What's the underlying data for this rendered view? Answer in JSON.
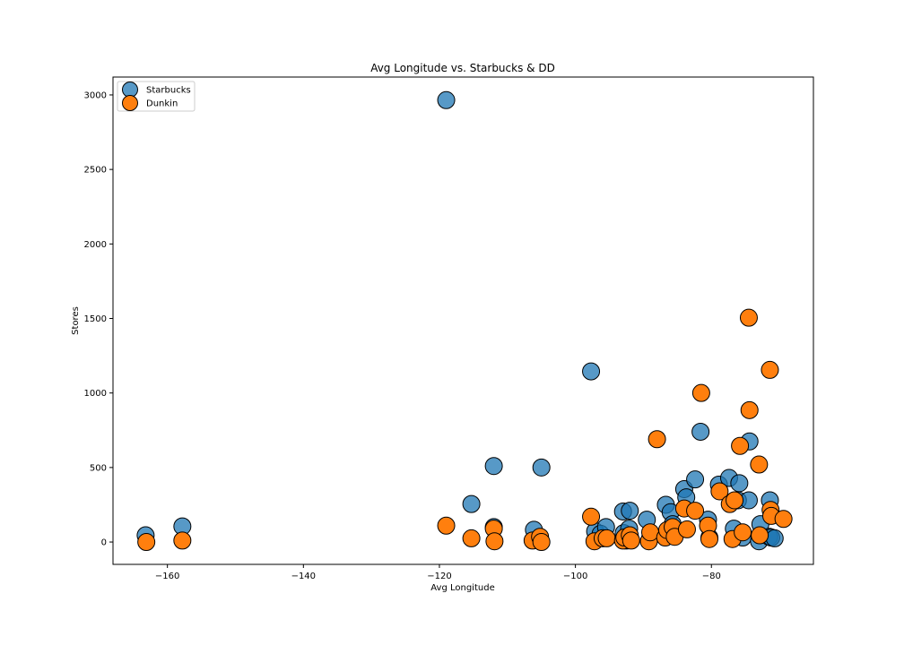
{
  "chart_data": {
    "type": "scatter",
    "title": "Avg Longitude vs. Starbucks & DD",
    "xlabel": "Avg Longitude",
    "ylabel": "Stores",
    "xlim": [
      -168,
      -65
    ],
    "ylim": [
      -150,
      3120
    ],
    "xticks": [
      -160,
      -140,
      -120,
      -100,
      -80
    ],
    "yticks": [
      0,
      500,
      1000,
      1500,
      2000,
      2500,
      3000
    ],
    "xtick_labels": [
      "−160",
      "−140",
      "−120",
      "−100",
      "−80"
    ],
    "ytick_labels": [
      "0",
      "500",
      "1000",
      "1500",
      "2000",
      "2500",
      "3000"
    ],
    "legend_position": "upper-left",
    "series": [
      {
        "name": "Starbucks",
        "color": "#1f77b4",
        "opacity": 0.75,
        "x": [
          -163.2,
          -157.8,
          -119.0,
          -115.3,
          -112.0,
          -112.0,
          -106.1,
          -105.0,
          -97.7,
          -97.1,
          -96.3,
          -95.5,
          -93.0,
          -92.9,
          -92.5,
          -92.1,
          -92.0,
          -89.5,
          -89.0,
          -86.7,
          -86.0,
          -85.7,
          -84.0,
          -83.7,
          -82.4,
          -81.6,
          -80.5,
          -80.3,
          -78.9,
          -77.4,
          -76.7,
          -76.1,
          -75.9,
          -75.4,
          -74.5,
          -74.4,
          -73.0,
          -72.8,
          -71.5,
          -71.4,
          -71.2,
          -70.7
        ],
        "y": [
          45,
          105,
          2965,
          255,
          510,
          100,
          82,
          500,
          1145,
          72,
          55,
          100,
          205,
          60,
          10,
          90,
          210,
          150,
          30,
          250,
          200,
          120,
          355,
          300,
          420,
          740,
          150,
          30,
          385,
          430,
          90,
          280,
          395,
          30,
          280,
          675,
          5,
          120,
          35,
          280,
          30,
          25
        ]
      },
      {
        "name": "Dunkin",
        "color": "#ff7f0e",
        "opacity": 1.0,
        "x": [
          -163.1,
          -157.8,
          -119.0,
          -115.3,
          -112.0,
          -111.9,
          -106.3,
          -105.2,
          -105.0,
          -97.7,
          -97.2,
          -96.0,
          -95.4,
          -93.0,
          -92.8,
          -92.0,
          -91.8,
          -89.2,
          -89.0,
          -88.0,
          -86.8,
          -86.5,
          -85.7,
          -85.4,
          -84.0,
          -83.6,
          -82.4,
          -81.5,
          -80.5,
          -80.3,
          -78.8,
          -77.3,
          -76.9,
          -76.6,
          -75.8,
          -75.4,
          -74.5,
          -74.4,
          -73.0,
          -72.9,
          -71.4,
          -71.3,
          -71.2,
          -69.4
        ],
        "y": [
          0,
          10,
          110,
          25,
          90,
          5,
          10,
          35,
          0,
          170,
          5,
          25,
          25,
          10,
          30,
          45,
          10,
          5,
          65,
          690,
          30,
          80,
          100,
          35,
          225,
          85,
          210,
          1000,
          110,
          20,
          340,
          255,
          20,
          280,
          645,
          65,
          1505,
          885,
          520,
          45,
          1155,
          215,
          175,
          155
        ]
      }
    ]
  }
}
